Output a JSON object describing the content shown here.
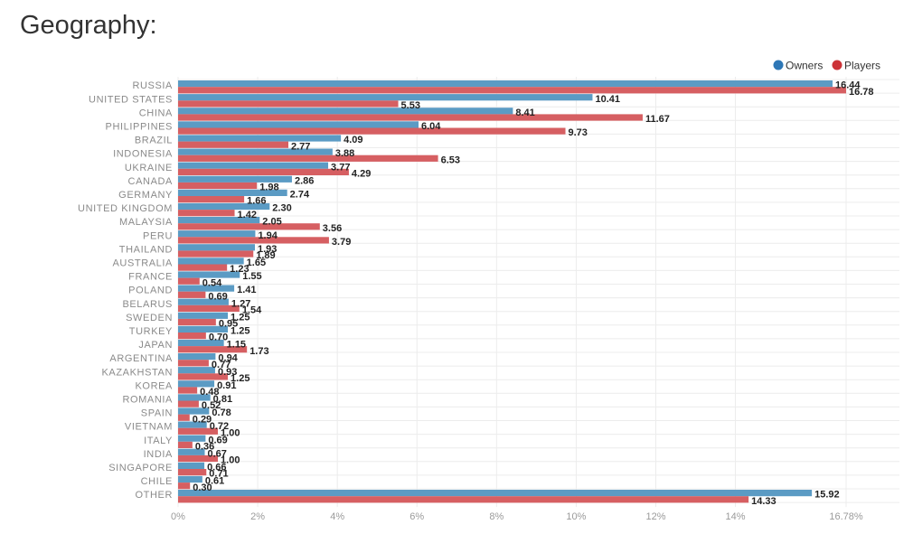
{
  "page": {
    "title": "Geography:"
  },
  "colors": {
    "owners": "#5b9bc4",
    "players": "#d65f62",
    "owners_legend": "#2e77b6",
    "players_legend": "#cc3338"
  },
  "chart_data": {
    "type": "bar",
    "orientation": "horizontal",
    "title": "Geography:",
    "xlabel": "",
    "ylabel": "",
    "xlim": [
      0,
      16.78
    ],
    "x_ticks": [
      "0%",
      "2%",
      "4%",
      "6%",
      "8%",
      "10%",
      "12%",
      "14%",
      "16.78%"
    ],
    "x_tick_values": [
      0,
      2,
      4,
      6,
      8,
      10,
      12,
      14,
      16.78
    ],
    "legend_position": "top-right",
    "grid": true,
    "categories": [
      "RUSSIA",
      "UNITED STATES",
      "CHINA",
      "PHILIPPINES",
      "BRAZIL",
      "INDONESIA",
      "UKRAINE",
      "CANADA",
      "GERMANY",
      "UNITED KINGDOM",
      "MALAYSIA",
      "PERU",
      "THAILAND",
      "AUSTRALIA",
      "FRANCE",
      "POLAND",
      "BELARUS",
      "SWEDEN",
      "TURKEY",
      "JAPAN",
      "ARGENTINA",
      "KAZAKHSTAN",
      "KOREA",
      "ROMANIA",
      "SPAIN",
      "VIETNAM",
      "ITALY",
      "INDIA",
      "SINGAPORE",
      "CHILE",
      "OTHER"
    ],
    "series": [
      {
        "name": "Owners",
        "values": [
          16.44,
          10.41,
          8.41,
          6.04,
          4.09,
          3.88,
          3.77,
          2.86,
          2.74,
          2.3,
          2.05,
          1.94,
          1.93,
          1.65,
          1.55,
          1.41,
          1.27,
          1.25,
          1.25,
          1.15,
          0.94,
          0.93,
          0.91,
          0.81,
          0.78,
          0.72,
          0.69,
          0.67,
          0.66,
          0.61,
          15.92
        ],
        "labels": [
          "16.44",
          "10.41",
          "8.41",
          "6.04",
          "4.09",
          "3.88",
          "3.77",
          "2.86",
          "2.74",
          "2.30",
          "2.05",
          "1.94",
          "1.93",
          "1.65",
          "1.55",
          "1.41",
          "1.27",
          "1.25",
          "1.25",
          "1.15",
          "0.94",
          "0.93",
          "0.91",
          "0.81",
          "0.78",
          "0.72",
          "0.69",
          "0.67",
          "0.66",
          "0.61",
          "15.92"
        ]
      },
      {
        "name": "Players",
        "values": [
          16.78,
          5.53,
          11.67,
          9.73,
          2.77,
          6.53,
          4.29,
          1.98,
          1.66,
          1.42,
          3.56,
          3.79,
          1.89,
          1.23,
          0.54,
          0.69,
          1.54,
          0.95,
          0.7,
          1.73,
          0.77,
          1.25,
          0.48,
          0.52,
          0.29,
          1.0,
          0.36,
          1.0,
          0.71,
          0.3,
          14.33
        ],
        "labels": [
          "16.78",
          "5.53",
          "11.67",
          "9.73",
          "2.77",
          "6.53",
          "4.29",
          "1.98",
          "1.66",
          "1.42",
          "3.56",
          "3.79",
          "1.89",
          "1.23",
          "0.54",
          "0.69",
          "1.54",
          "0.95",
          "0.70",
          "1.73",
          "0.77",
          "1.25",
          "0.48",
          "0.52",
          "0.29",
          "1.00",
          "0.36",
          "1.00",
          "0.71",
          "0.30",
          "14.33"
        ]
      }
    ]
  }
}
